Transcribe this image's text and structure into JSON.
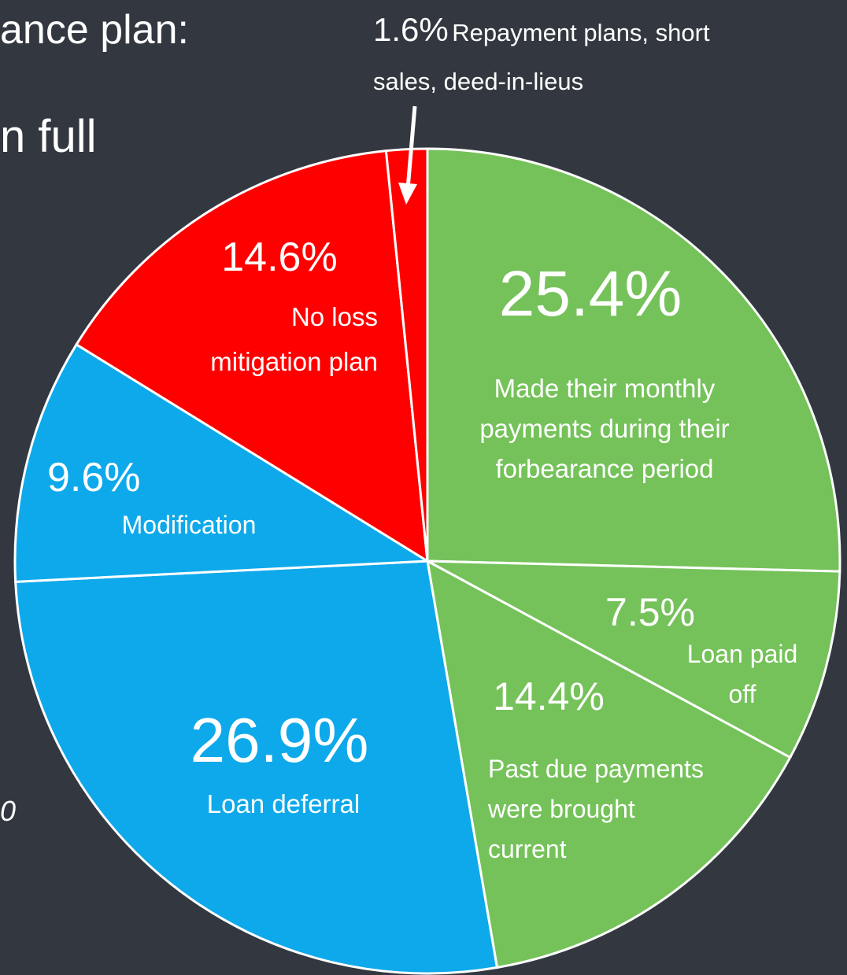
{
  "chart_data": {
    "type": "pie",
    "categories": [
      "Made their monthly payments during their forbearance period",
      "Loan paid off",
      "Past due payments were brought current",
      "Loan deferral",
      "Modification",
      "No loss mitigation plan",
      "Repayment plans, short sales, deed-in-lieus"
    ],
    "values": [
      25.4,
      7.5,
      14.4,
      26.9,
      9.6,
      14.6,
      1.6
    ],
    "value_labels": [
      "25.4%",
      "7.5%",
      "14.4%",
      "26.9%",
      "9.6%",
      "14.6%",
      "1.6%"
    ],
    "colors": [
      "#75c25a",
      "#75c25a",
      "#75c25a",
      "#0ea9ea",
      "#0ea9ea",
      "#ff0000",
      "#ff0000"
    ],
    "background_text": [
      "ance plan:",
      "n full",
      "0"
    ]
  }
}
